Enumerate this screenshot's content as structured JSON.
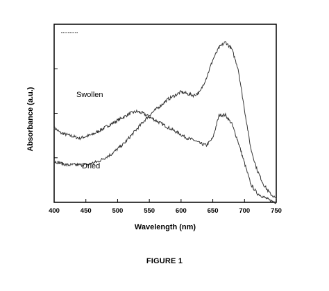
{
  "figure": {
    "caption": "FIGURE 1"
  },
  "chart_data": {
    "type": "line",
    "title": "",
    "xlabel": "Wavelength (nm)",
    "ylabel": "Absorbance (a.u.)",
    "xlim": [
      400,
      750
    ],
    "ylim": [
      0,
      1
    ],
    "xticks": [
      400,
      450,
      500,
      550,
      600,
      650,
      700,
      750
    ],
    "xtick_labels": [
      "400",
      "450",
      "500",
      "550",
      "600",
      "650",
      "700",
      "750"
    ],
    "y_tick_labels_shown": false,
    "grid": false,
    "legend": "top-left (line swatch only, no text)",
    "series": [
      {
        "name": "Swollen",
        "x": [
          400,
          410,
          420,
          430,
          440,
          450,
          460,
          470,
          480,
          490,
          500,
          510,
          520,
          530,
          540,
          550,
          560,
          570,
          580,
          590,
          600,
          610,
          620,
          630,
          640,
          650,
          660,
          670,
          680,
          690,
          700,
          710,
          720,
          730,
          740,
          750
        ],
        "y": [
          0.42,
          0.39,
          0.38,
          0.37,
          0.36,
          0.37,
          0.38,
          0.4,
          0.42,
          0.44,
          0.46,
          0.48,
          0.5,
          0.51,
          0.5,
          0.48,
          0.46,
          0.44,
          0.42,
          0.4,
          0.38,
          0.36,
          0.35,
          0.33,
          0.32,
          0.36,
          0.49,
          0.49,
          0.44,
          0.34,
          0.22,
          0.1,
          0.05,
          0.03,
          0.01,
          0.0
        ]
      },
      {
        "name": "Dried",
        "x": [
          400,
          410,
          420,
          430,
          440,
          450,
          460,
          470,
          480,
          490,
          500,
          510,
          520,
          530,
          540,
          550,
          560,
          570,
          580,
          590,
          600,
          610,
          620,
          630,
          640,
          650,
          660,
          670,
          680,
          690,
          700,
          710,
          720,
          730,
          740,
          750
        ],
        "y": [
          0.23,
          0.22,
          0.21,
          0.21,
          0.21,
          0.21,
          0.22,
          0.23,
          0.25,
          0.27,
          0.3,
          0.33,
          0.37,
          0.41,
          0.45,
          0.49,
          0.52,
          0.55,
          0.58,
          0.6,
          0.62,
          0.61,
          0.6,
          0.62,
          0.7,
          0.8,
          0.87,
          0.9,
          0.86,
          0.75,
          0.52,
          0.3,
          0.18,
          0.1,
          0.05,
          0.02
        ]
      }
    ],
    "annotations": [
      {
        "text": "Swollen",
        "series": "Swollen"
      },
      {
        "text": "Dried",
        "series": "Dried"
      }
    ]
  }
}
